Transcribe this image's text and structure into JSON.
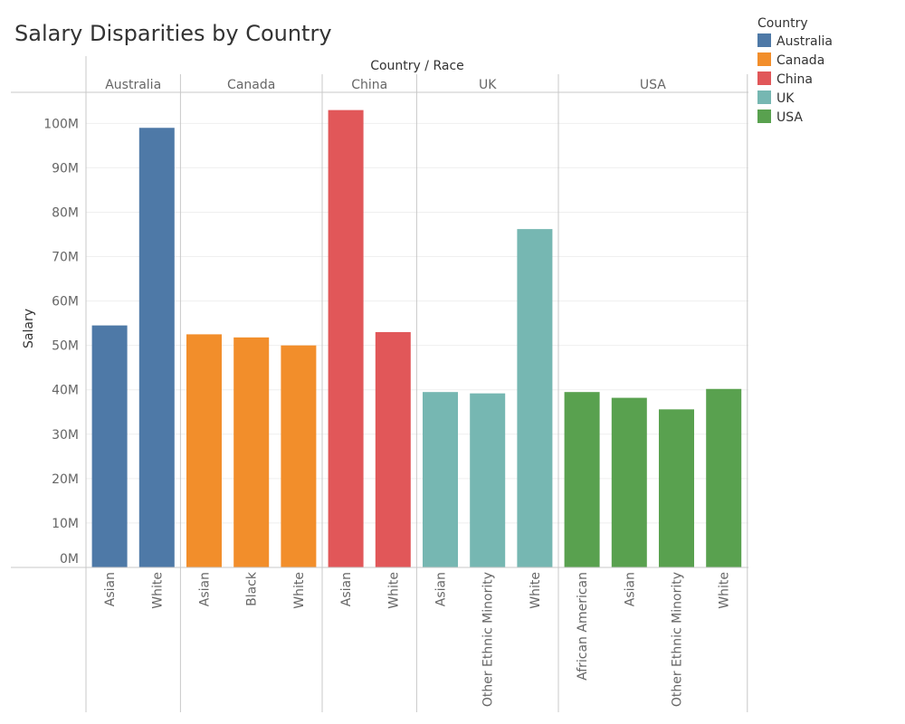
{
  "chart_data": {
    "type": "bar",
    "title": "Salary Disparities by Country",
    "column_header": "Country / Race",
    "ylabel": "Salary",
    "ylim": [
      0,
      107000000
    ],
    "yticks": [
      {
        "value": 0,
        "label": "0M"
      },
      {
        "value": 10000000,
        "label": "10M"
      },
      {
        "value": 20000000,
        "label": "20M"
      },
      {
        "value": 30000000,
        "label": "30M"
      },
      {
        "value": 40000000,
        "label": "40M"
      },
      {
        "value": 50000000,
        "label": "50M"
      },
      {
        "value": 60000000,
        "label": "60M"
      },
      {
        "value": 70000000,
        "label": "70M"
      },
      {
        "value": 80000000,
        "label": "80M"
      },
      {
        "value": 90000000,
        "label": "90M"
      },
      {
        "value": 100000000,
        "label": "100M"
      }
    ],
    "gridlines": true,
    "legend": {
      "title": "Country",
      "placement": "top-right",
      "items": [
        {
          "label": "Australia",
          "color": "#4e79a7"
        },
        {
          "label": "Canada",
          "color": "#f28e2b"
        },
        {
          "label": "China",
          "color": "#e15759"
        },
        {
          "label": "UK",
          "color": "#76b7b2"
        },
        {
          "label": "USA",
          "color": "#59a14f"
        }
      ]
    },
    "groups": [
      {
        "country": "Australia",
        "color": "#4e79a7",
        "categories": [
          "Asian",
          "White"
        ],
        "values": [
          54500000,
          99000000
        ]
      },
      {
        "country": "Canada",
        "color": "#f28e2b",
        "categories": [
          "Asian",
          "Black",
          "White"
        ],
        "values": [
          52500000,
          51800000,
          50000000
        ]
      },
      {
        "country": "China",
        "color": "#e15759",
        "categories": [
          "Asian",
          "White"
        ],
        "values": [
          103000000,
          53000000
        ]
      },
      {
        "country": "UK",
        "color": "#76b7b2",
        "categories": [
          "Asian",
          "Other Ethnic Minority",
          "White"
        ],
        "values": [
          39500000,
          39200000,
          76200000
        ]
      },
      {
        "country": "USA",
        "color": "#59a14f",
        "categories": [
          "African American",
          "Asian",
          "Other Ethnic Minority",
          "White"
        ],
        "values": [
          39500000,
          38200000,
          35600000,
          40200000
        ]
      }
    ]
  }
}
